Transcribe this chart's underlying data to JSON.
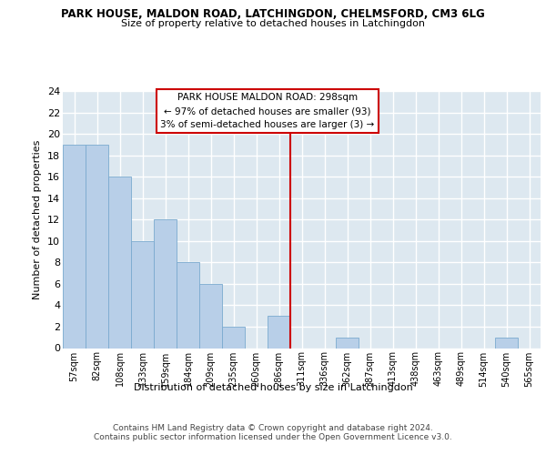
{
  "title_line1": "PARK HOUSE, MALDON ROAD, LATCHINGDON, CHELMSFORD, CM3 6LG",
  "title_line2": "Size of property relative to detached houses in Latchingdon",
  "xlabel": "Distribution of detached houses by size in Latchingdon",
  "ylabel": "Number of detached properties",
  "bar_labels": [
    "57sqm",
    "82sqm",
    "108sqm",
    "133sqm",
    "159sqm",
    "184sqm",
    "209sqm",
    "235sqm",
    "260sqm",
    "286sqm",
    "311sqm",
    "336sqm",
    "362sqm",
    "387sqm",
    "413sqm",
    "438sqm",
    "463sqm",
    "489sqm",
    "514sqm",
    "540sqm",
    "565sqm"
  ],
  "bar_values": [
    19,
    19,
    16,
    10,
    12,
    8,
    6,
    2,
    0,
    3,
    0,
    0,
    1,
    0,
    0,
    0,
    0,
    0,
    0,
    1,
    0
  ],
  "bar_color": "#b8cfe8",
  "bar_edge_color": "#7aaacf",
  "fig_bg_color": "#ffffff",
  "axes_bg_color": "#dde8f0",
  "grid_color": "#ffffff",
  "annotation_text": "PARK HOUSE MALDON ROAD: 298sqm\n← 97% of detached houses are smaller (93)\n3% of semi-detached houses are larger (3) →",
  "annotation_box_facecolor": "#ffffff",
  "annotation_box_edgecolor": "#cc0000",
  "vline_color": "#cc0000",
  "vline_x": 9.5,
  "ylim": [
    0,
    24
  ],
  "yticks": [
    0,
    2,
    4,
    6,
    8,
    10,
    12,
    14,
    16,
    18,
    20,
    22,
    24
  ],
  "footer_line1": "Contains HM Land Registry data © Crown copyright and database right 2024.",
  "footer_line2": "Contains public sector information licensed under the Open Government Licence v3.0."
}
